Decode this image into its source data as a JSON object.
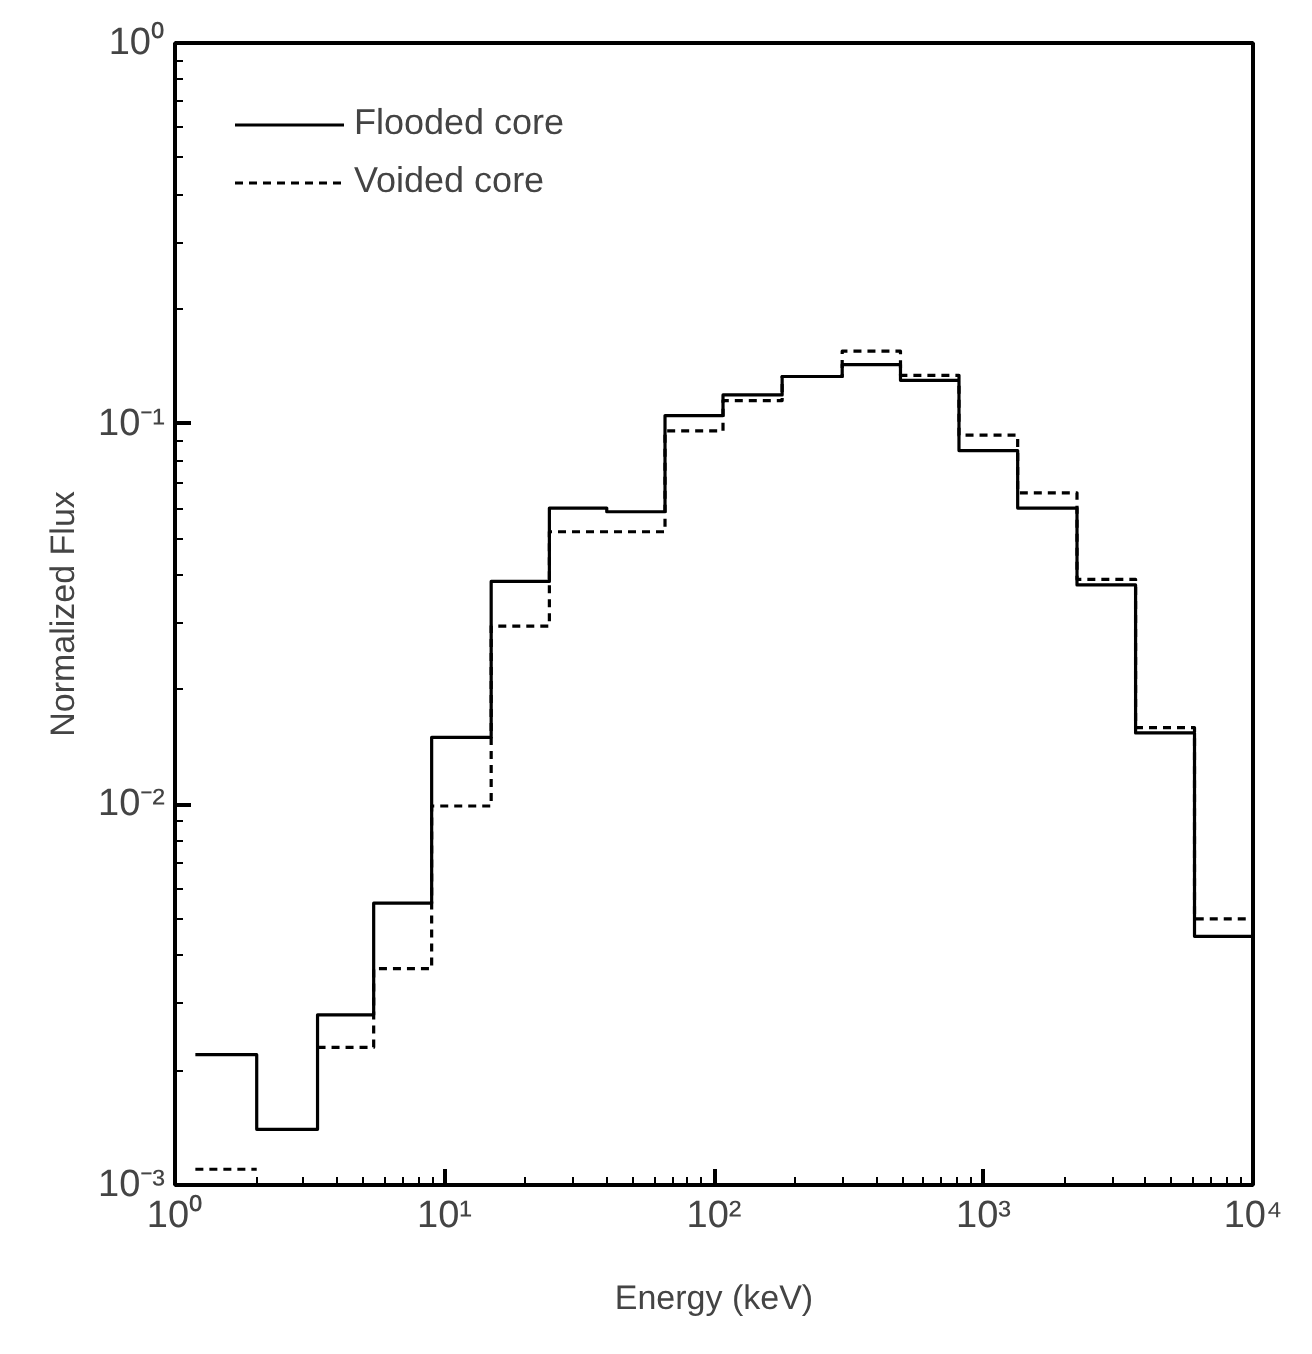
{
  "chart_data": {
    "type": "step",
    "xlabel": "Energy (keV)",
    "ylabel": "Normalized Flux",
    "log": "xy",
    "grid": false,
    "legend": "top left",
    "x": [
      1.19,
      2.01,
      3.38,
      5.46,
      8.96,
      14.9,
      24.5,
      40,
      65.8,
      108,
      179,
      299,
      492,
      811,
      1339,
      2223,
      3667,
      6067,
      10000
    ],
    "xlim": [
      1,
      10000
    ],
    "ylim": [
      0.001,
      1
    ],
    "xticks": [
      {
        "value": 1,
        "label": "10⁰"
      },
      {
        "value": 10,
        "label": "10¹"
      },
      {
        "value": 100,
        "label": "10²"
      },
      {
        "value": 1000,
        "label": "10³"
      },
      {
        "value": 10000,
        "label": "10⁴"
      }
    ],
    "yticks": [
      {
        "value": 0.001,
        "label": "10⁻³"
      },
      {
        "value": 0.01,
        "label": "10⁻²"
      },
      {
        "value": 0.1,
        "label": "10⁻¹"
      },
      {
        "value": 1,
        "label": "10⁰"
      }
    ],
    "series": [
      {
        "name": "Flooded core",
        "color": "#000000",
        "line_style": "solid",
        "values": [
          0.0022,
          0.0014,
          0.0028,
          0.0055,
          0.015,
          0.0385,
          0.06,
          0.0587,
          0.105,
          0.119,
          0.133,
          0.143,
          0.13,
          0.085,
          0.06,
          0.0377,
          0.0154,
          0.0045,
          0.0045
        ]
      },
      {
        "name": "Voided core",
        "color": "#000000",
        "line_style": "dashed",
        "values": [
          0.0011,
          null,
          0.0023,
          0.0037,
          0.0099,
          0.0294,
          0.052,
          0.052,
          0.0957,
          0.115,
          0.133,
          0.155,
          0.134,
          0.0933,
          0.0658,
          0.039,
          0.0159,
          0.005,
          0.005
        ]
      }
    ]
  }
}
